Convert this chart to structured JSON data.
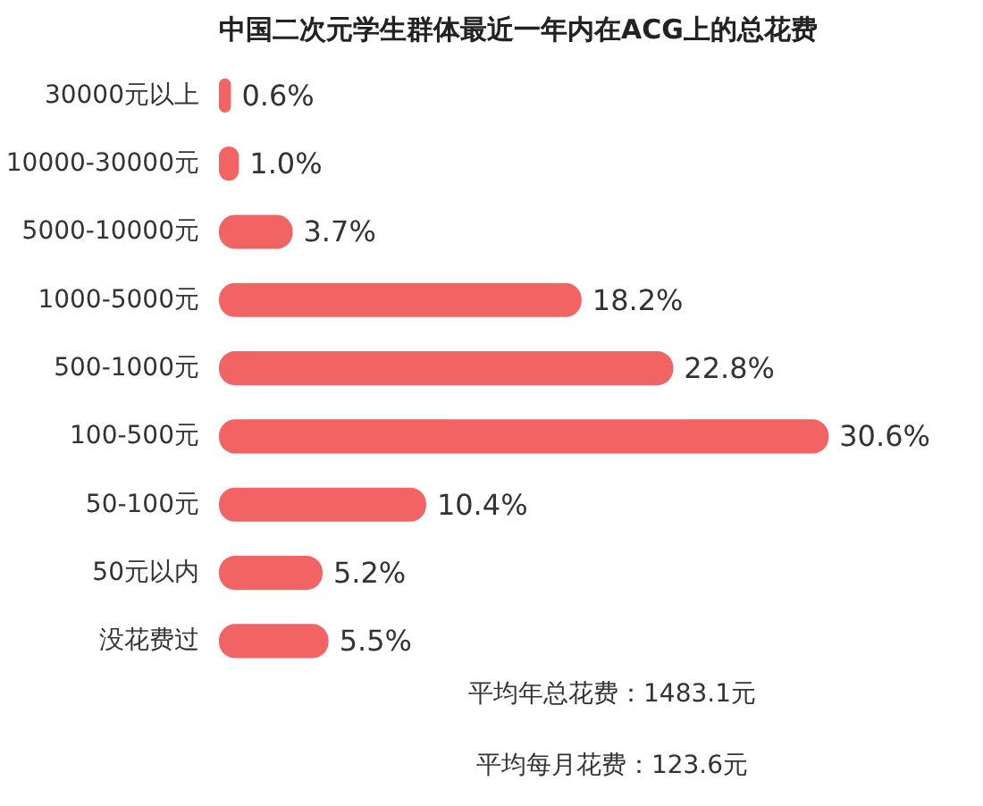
{
  "chart_data": {
    "type": "bar",
    "orientation": "horizontal",
    "title": "中国二次元学生群体最近一年内在ACG上的总花费",
    "categories": [
      "30000元以上",
      "10000-30000元",
      "5000-10000元",
      "1000-5000元",
      "500-1000元",
      "100-500元",
      "50-100元",
      "50元以内",
      "没花费过"
    ],
    "values": [
      0.6,
      1.0,
      3.7,
      18.2,
      22.8,
      30.6,
      10.4,
      5.2,
      5.5
    ],
    "value_labels": [
      "0.6%",
      "1.0%",
      "3.7%",
      "18.2%",
      "22.8%",
      "30.6%",
      "10.4%",
      "5.2%",
      "5.5%"
    ],
    "color": "#f26363",
    "grid": false,
    "annotations": [
      "平均年总花费：1483.1元",
      "平均每月花费：123.6元"
    ]
  }
}
